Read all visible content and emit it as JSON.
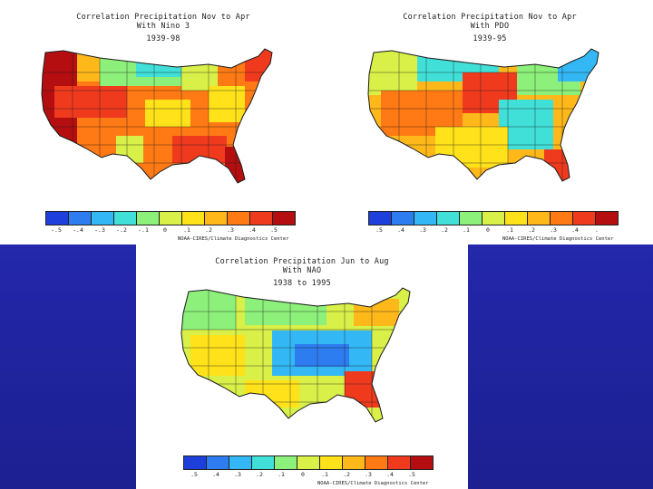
{
  "panels": {
    "a": {
      "title1": "Correlation Precipitation Nov to Apr",
      "title2": "With Nino 3",
      "period": "1939-98",
      "ticks": [
        "-.5",
        "-.4",
        "-.3",
        "-.2",
        "-.1",
        "0",
        ".1",
        ".2",
        ".3",
        ".4",
        ".5"
      ],
      "credit": "NOAA-CIRES/Climate Diagnostics Center"
    },
    "b": {
      "title1": "Correlation Precipitation Nov to Apr",
      "title2": "With PDO",
      "period": "1939-95",
      "ticks": [
        ".5",
        ".4",
        ".3",
        ".2",
        ".1",
        "0",
        ".1",
        ".2",
        ".3",
        ".4",
        "."
      ],
      "credit": "NOAA-CIRES/Climate Diagnostics Center"
    },
    "c": {
      "title1": "Correlation Precipitation Jun to Aug",
      "title2": "With NAO",
      "period": "1938 to 1995",
      "ticks": [
        ".5",
        ".4",
        ".3",
        ".2",
        ".1",
        "0",
        ".1",
        ".2",
        ".3",
        ".4",
        ".5"
      ],
      "credit": "NOAA-CIRES/Climate Diagnostics Center"
    }
  },
  "colorscale": [
    "#1f3fdc",
    "#2e7df0",
    "#33b8f5",
    "#40e0d8",
    "#8cf07a",
    "#d8f048",
    "#ffe21a",
    "#ffb81a",
    "#ff7a14",
    "#f03a1e",
    "#b40e10"
  ],
  "colors": {
    "background": "#2a2eb0",
    "panel": "#ffffff",
    "outline": "#1a1a1a"
  }
}
